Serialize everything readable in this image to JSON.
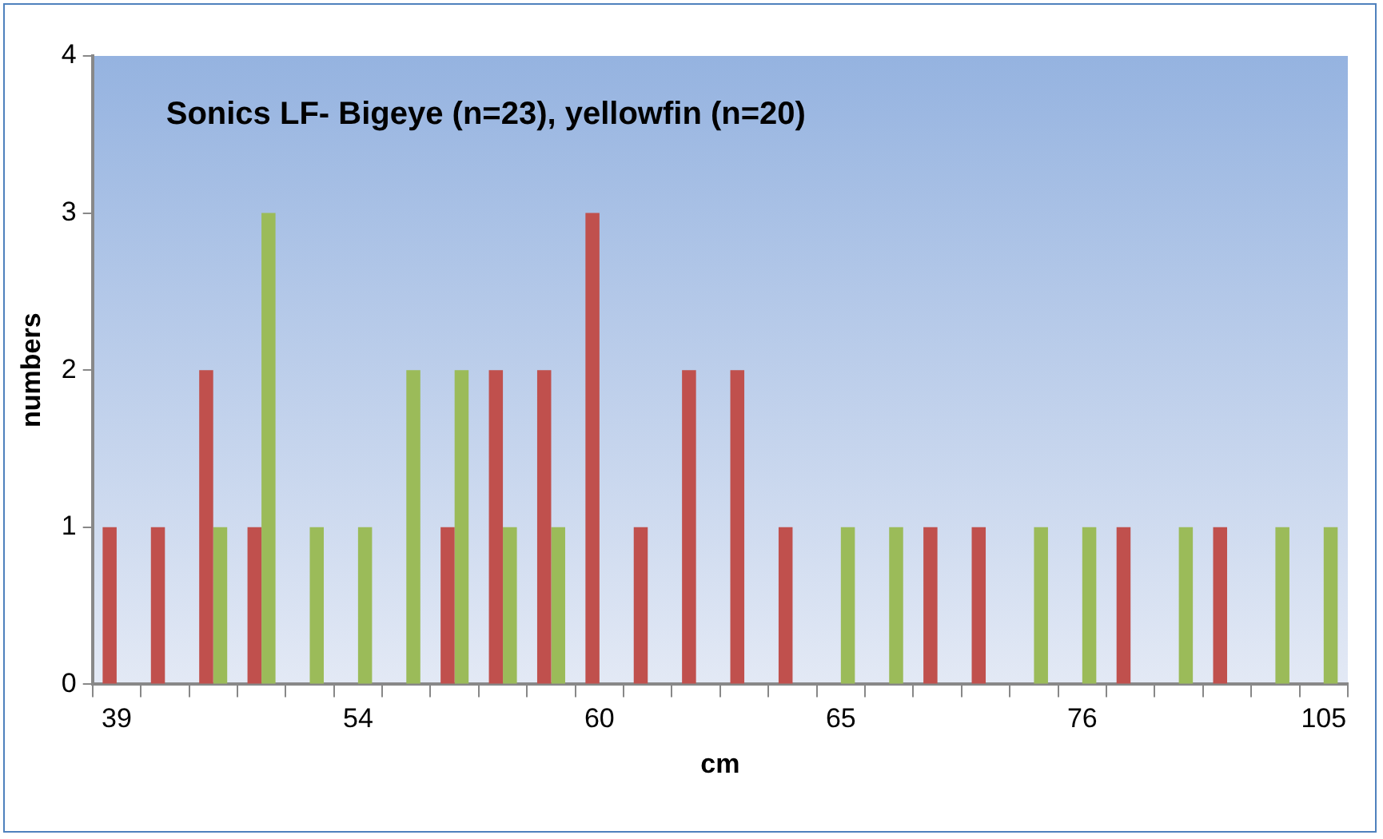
{
  "chart_data": {
    "type": "bar",
    "title": "Sonics LF- Bigeye (n=23), yellowfin (n=20)",
    "xlabel": "cm",
    "ylabel": "numbers",
    "categories": [
      "39",
      null,
      null,
      null,
      null,
      "54",
      null,
      null,
      null,
      null,
      "60",
      null,
      null,
      null,
      null,
      "65",
      null,
      null,
      null,
      null,
      "76",
      null,
      null,
      null,
      null,
      "105"
    ],
    "series": [
      {
        "color": "#c0504d",
        "values": [
          1,
          1,
          2,
          1,
          0,
          0,
          0,
          1,
          2,
          2,
          3,
          1,
          2,
          2,
          1,
          0,
          0,
          1,
          1,
          0,
          0,
          1,
          0,
          1,
          0,
          0
        ]
      },
      {
        "color": "#9bbb59",
        "values": [
          0,
          0,
          1,
          3,
          1,
          1,
          2,
          2,
          1,
          1,
          0,
          0,
          0,
          0,
          0,
          1,
          1,
          0,
          0,
          1,
          1,
          0,
          1,
          0,
          1,
          1
        ]
      }
    ],
    "ylim": [
      0,
      4
    ],
    "yticks": [
      0,
      1,
      2,
      3,
      4
    ],
    "grid": false,
    "legend": false
  }
}
